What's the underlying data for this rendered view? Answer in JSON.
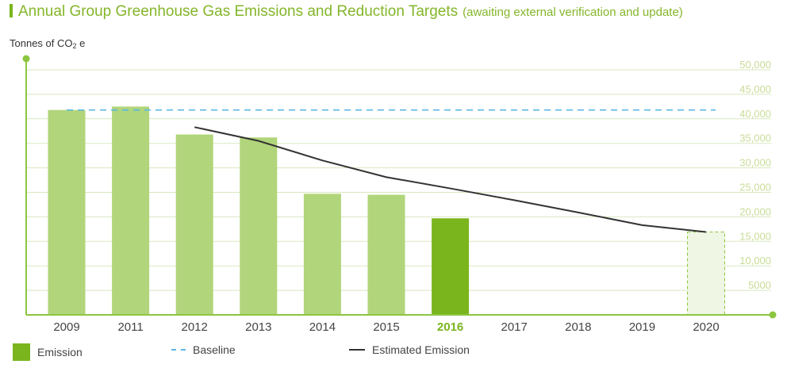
{
  "title": {
    "main": "Annual Group Greenhouse Gas Emissions and Reduction Targets",
    "sub": "(awaiting external verification and update)"
  },
  "y_axis": {
    "label_prefix": "Tonnes of CO",
    "label_subscript": "2",
    "label_suffix": " e"
  },
  "colors": {
    "accent": "#7ab51d",
    "bar": "#b1d57a",
    "highlight_bar": "#7ab51d",
    "baseline": "#5bb7e5",
    "estimate_line": "#333333",
    "grid": "#d9e8bf",
    "axis": "#8cc63f"
  },
  "chart_data": {
    "type": "bar",
    "title": "Annual Group Greenhouse Gas Emissions and Reduction Targets (awaiting external verification and update)",
    "ylabel": "Tonnes of CO2 e",
    "xlabel": "",
    "ylim": [
      0,
      50000
    ],
    "yticks": [
      50000,
      45000,
      40000,
      35000,
      30000,
      25000,
      20000,
      15000,
      10000,
      5000
    ],
    "ytick_labels": [
      "50,000",
      "45,000",
      "40,000",
      "35,000",
      "30,000",
      "25,000",
      "20,000",
      "15,000",
      "10,000",
      "5000"
    ],
    "categories": [
      "2009",
      "2011",
      "2012",
      "2013",
      "2014",
      "2015",
      "2016",
      "2017",
      "2018",
      "2019",
      "2020"
    ],
    "highlight_category": "2016",
    "target_category": "2020",
    "series": [
      {
        "name": "Emission",
        "type": "bar",
        "values": [
          41800,
          42500,
          36800,
          36200,
          24700,
          24500,
          19700,
          null,
          null,
          null,
          16900
        ]
      },
      {
        "name": "Baseline",
        "type": "dashed-line",
        "value": 41800
      },
      {
        "name": "Estimated Emission",
        "type": "line",
        "values": [
          null,
          null,
          38300,
          35500,
          31500,
          28100,
          25800,
          23400,
          20900,
          18300,
          16900
        ]
      }
    ],
    "grid": true,
    "legend_position": "bottom-left"
  },
  "legend": [
    {
      "label": "Emission"
    },
    {
      "label": "Baseline"
    },
    {
      "label": "Estimated Emission"
    }
  ]
}
